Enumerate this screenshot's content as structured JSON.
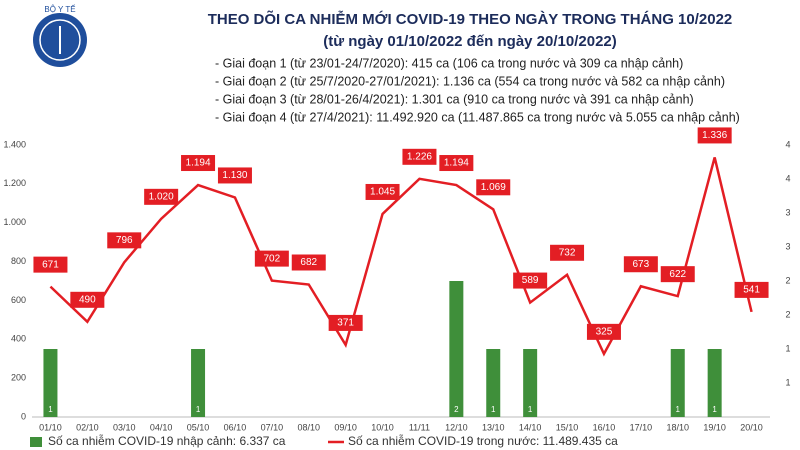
{
  "logo_text": "BỘ Y TẾ",
  "chart_data": {
    "type": "bar-line",
    "title": "THEO DÕI CA NHIỄM MỚI COVID-19 THEO NGÀY TRONG THÁNG 10/2022",
    "subtitle": "(từ ngày 01/10/2022 đến ngày 20/10/2022)",
    "notes": [
      "- Giai đoạn 1 (từ 23/01-24/7/2020): 415 ca (106 ca trong nước và 309 ca nhập cảnh)",
      "- Giai đoạn 2 (từ 25/7/2020-27/01/2021): 1.136 ca (554 ca trong nước và 582 ca nhập cảnh)",
      "- Giai đoạn 3 (từ 28/01-26/4/2021): 1.301 ca (910 ca trong nước và 391 ca nhập cảnh)",
      "- Giai đoạn 4 (từ 27/4/2021): 11.492.920 ca (11.487.865 ca trong nước và 5.055 ca nhập cảnh)"
    ],
    "categories": [
      "01/10",
      "02/10",
      "03/10",
      "04/10",
      "05/10",
      "06/10",
      "07/10",
      "08/10",
      "09/10",
      "10/10",
      "11/11",
      "12/10",
      "13/10",
      "14/10",
      "15/10",
      "16/10",
      "17/10",
      "18/10",
      "19/10",
      "20/10"
    ],
    "series": [
      {
        "name": "Số ca nhiễm COVID-19 nhập cảnh: 6.337 ca",
        "type": "bar",
        "axis": "y2",
        "color": "#3f8f3a",
        "values": [
          1,
          0,
          0,
          0,
          1,
          0,
          0,
          0,
          0,
          0,
          0,
          2,
          1,
          1,
          0,
          0,
          0,
          1,
          1,
          0
        ],
        "value_labels": [
          "1",
          "-",
          "-",
          "-",
          "1",
          "-",
          "-",
          "-",
          "-",
          "-",
          "-",
          "2",
          "1",
          "1",
          "-",
          "-",
          "-",
          "1",
          "1",
          "-"
        ]
      },
      {
        "name": "Số ca nhiễm COVID-19 trong nước: 11.489.435 ca",
        "type": "line",
        "axis": "y",
        "color": "#e31e24",
        "values": [
          671,
          490,
          796,
          1020,
          1194,
          1130,
          702,
          682,
          371,
          1045,
          1226,
          1194,
          1069,
          589,
          732,
          325,
          673,
          622,
          1336,
          541
        ],
        "value_labels": [
          "671",
          "490",
          "796",
          "1.020",
          "1.194",
          "1.130",
          "702",
          "682",
          "371",
          "1.045",
          "1.226",
          "1.194",
          "1.069",
          "589",
          "732",
          "325",
          "673",
          "622",
          "1.336",
          "541"
        ]
      }
    ],
    "ylim": [
      0,
      1400
    ],
    "yticks": [
      0,
      200,
      400,
      600,
      800,
      {
        "value": 1000,
        "label": "1.000"
      },
      {
        "value": 1200,
        "label": "1.200"
      },
      {
        "value": 1400,
        "label": "1.400"
      }
    ],
    "y2lim": [
      0,
      4
    ],
    "y2ticks": [
      {
        "value": 0.5,
        "label": "1"
      },
      1,
      {
        "value": 1.5,
        "label": "2"
      },
      2,
      {
        "value": 2.5,
        "label": "3"
      },
      3,
      {
        "value": 3.5,
        "label": "4"
      },
      4
    ]
  }
}
